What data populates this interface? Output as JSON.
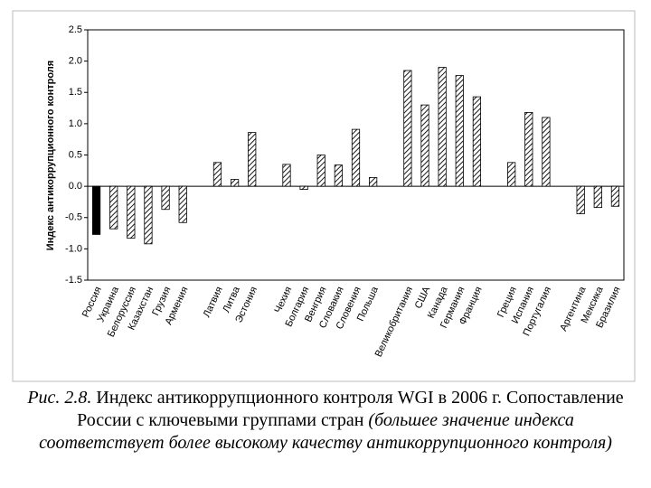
{
  "chart_data": {
    "type": "bar",
    "ylabel": "Индекс антикоррупционного контроля",
    "categories": [
      "Россия",
      "Украина",
      "Белоруссия",
      "Казахстан",
      "Грузия",
      "Армения",
      null,
      "Латвия",
      "Литва",
      "Эстония",
      null,
      "Чехия",
      "Болгария",
      "Венгрия",
      "Словакия",
      "Словения",
      "Польша",
      null,
      "Великобритания",
      "США",
      "Канада",
      "Германия",
      "Франция",
      null,
      "Греция",
      "Испания",
      "Португалия",
      null,
      "Аргентина",
      "Мексика",
      "Бразилия"
    ],
    "values": [
      -0.77,
      -0.68,
      -0.83,
      -0.92,
      -0.37,
      -0.58,
      null,
      0.38,
      0.11,
      0.86,
      null,
      0.35,
      -0.05,
      0.5,
      0.34,
      0.91,
      0.14,
      null,
      1.85,
      1.3,
      1.9,
      1.77,
      1.43,
      null,
      0.38,
      1.18,
      1.1,
      null,
      -0.44,
      -0.34,
      -0.32
    ],
    "colors": [
      "#000000",
      "hatch",
      "hatch",
      "hatch",
      "hatch",
      "hatch",
      null,
      "hatch",
      "hatch",
      "hatch",
      null,
      "hatch",
      "hatch",
      "hatch",
      "hatch",
      "hatch",
      "hatch",
      null,
      "hatch",
      "hatch",
      "hatch",
      "hatch",
      "hatch",
      null,
      "hatch",
      "hatch",
      "hatch",
      null,
      "hatch",
      "hatch",
      "hatch"
    ],
    "ylim": [
      -1.5,
      2.5
    ],
    "yticks": [
      -1.5,
      -0.5,
      {
        "value": -1,
        "label": "-1.0"
      },
      {
        "value": 0,
        "label": "0.0"
      },
      0.5,
      {
        "value": 1,
        "label": "1.0"
      },
      1.5,
      {
        "value": 2,
        "label": "2.0"
      },
      2.5
    ]
  },
  "caption": {
    "label": "Рис. 2.8.",
    "title": "Индекс антикоррупционного контроля WGI в 2006 г. Сопоставление России с ключевыми группами стран",
    "note": "(большее значение индекса соответствует более высокому качеству антикоррупционного контроля)"
  }
}
